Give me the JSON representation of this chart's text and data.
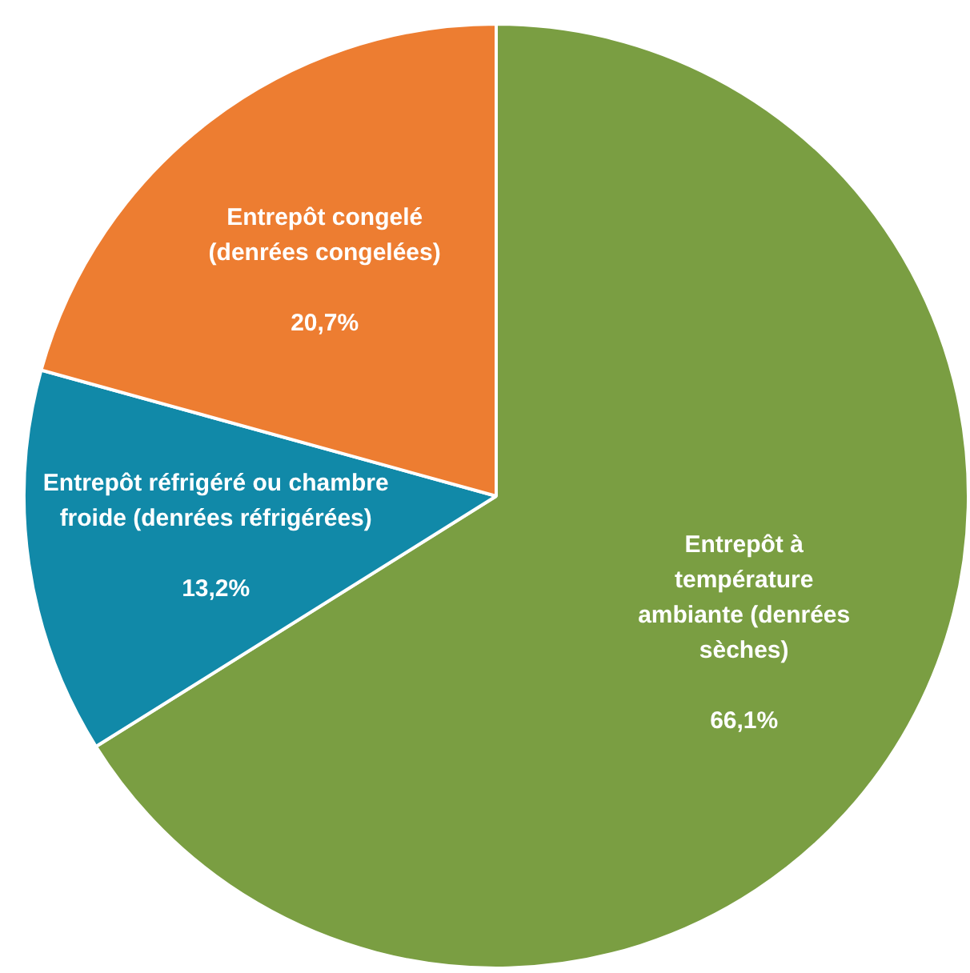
{
  "chart_data": {
    "type": "pie",
    "categories": [
      "Entrepôt à température ambiante (denrées sèches)",
      "Entrepôt réfrigéré ou chambre froide (denrées réfrigérées)",
      "Entrepôt congelé (denrées congelées)"
    ],
    "values": [
      66.1,
      13.2,
      20.7
    ],
    "colors": [
      "#7a9e42",
      "#1189a8",
      "#ed7d31"
    ],
    "value_labels": [
      "66,1%",
      "13,2%",
      "20,7%"
    ],
    "legend": false
  }
}
